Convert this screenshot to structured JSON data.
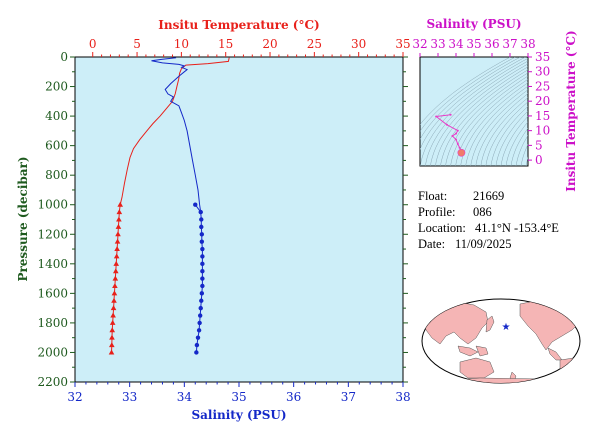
{
  "chart_data": [
    {
      "type": "line",
      "title": "",
      "y_axis": {
        "label": "Pressure (decibar)",
        "range": [
          0,
          2200
        ],
        "inverted": true,
        "ticks": [
          0,
          200,
          400,
          600,
          800,
          1000,
          1200,
          1400,
          1600,
          1800,
          2000,
          2200
        ]
      },
      "temperature_axis": {
        "label": "Insitu Temperature (°C)",
        "position": "top",
        "range": [
          -2,
          35
        ],
        "ticks": [
          0,
          5,
          10,
          15,
          20,
          25,
          30,
          35
        ]
      },
      "salinity_axis": {
        "label": "Salinity (PSU)",
        "position": "bottom",
        "range": [
          32,
          38
        ],
        "ticks": [
          32,
          33,
          34,
          35,
          36,
          37,
          38
        ]
      },
      "series": [
        {
          "name": "Temperature",
          "color": "#e8201a",
          "profile": [
            [
              15.4,
              5
            ],
            [
              15.3,
              30
            ],
            [
              13.0,
              45
            ],
            [
              10.5,
              55
            ],
            [
              10.0,
              80
            ],
            [
              9.8,
              110
            ],
            [
              9.7,
              150
            ],
            [
              9.5,
              200
            ],
            [
              9.3,
              250
            ],
            [
              9.0,
              300
            ],
            [
              8.3,
              350
            ],
            [
              7.6,
              400
            ],
            [
              6.8,
              450
            ],
            [
              6.1,
              500
            ],
            [
              5.3,
              560
            ],
            [
              4.6,
              620
            ],
            [
              4.2,
              680
            ],
            [
              3.9,
              760
            ],
            [
              3.6,
              850
            ],
            [
              3.3,
              950
            ],
            [
              3.1,
              1000
            ]
          ],
          "markers": [
            [
              3.1,
              1000
            ],
            [
              3.0,
              1050
            ],
            [
              2.95,
              1100
            ],
            [
              2.9,
              1150
            ],
            [
              2.85,
              1200
            ],
            [
              2.8,
              1250
            ],
            [
              2.75,
              1300
            ],
            [
              2.7,
              1350
            ],
            [
              2.65,
              1400
            ],
            [
              2.6,
              1450
            ],
            [
              2.55,
              1500
            ],
            [
              2.5,
              1550
            ],
            [
              2.45,
              1600
            ],
            [
              2.4,
              1650
            ],
            [
              2.35,
              1700
            ],
            [
              2.3,
              1750
            ],
            [
              2.25,
              1800
            ],
            [
              2.2,
              1850
            ],
            [
              2.17,
              1900
            ],
            [
              2.15,
              1950
            ],
            [
              2.12,
              2000
            ]
          ],
          "marker": "triangle"
        },
        {
          "name": "Salinity",
          "color": "#1428c8",
          "profile": [
            [
              33.85,
              5
            ],
            [
              33.6,
              15
            ],
            [
              33.4,
              25
            ],
            [
              33.6,
              40
            ],
            [
              33.9,
              50
            ],
            [
              34.0,
              60
            ],
            [
              33.95,
              70
            ],
            [
              34.05,
              85
            ],
            [
              34.0,
              100
            ],
            [
              33.9,
              130
            ],
            [
              33.75,
              180
            ],
            [
              33.65,
              220
            ],
            [
              33.7,
              250
            ],
            [
              33.8,
              270
            ],
            [
              33.75,
              300
            ],
            [
              33.9,
              330
            ],
            [
              33.95,
              380
            ],
            [
              34.0,
              430
            ],
            [
              34.05,
              500
            ],
            [
              34.1,
              600
            ],
            [
              34.15,
              700
            ],
            [
              34.2,
              800
            ],
            [
              34.25,
              900
            ],
            [
              34.28,
              1000
            ],
            [
              34.3,
              1050
            ]
          ],
          "markers": [
            [
              34.2,
              1000
            ],
            [
              34.3,
              1050
            ],
            [
              34.31,
              1100
            ],
            [
              34.31,
              1150
            ],
            [
              34.32,
              1200
            ],
            [
              34.32,
              1250
            ],
            [
              34.33,
              1300
            ],
            [
              34.33,
              1350
            ],
            [
              34.33,
              1400
            ],
            [
              34.33,
              1450
            ],
            [
              34.33,
              1500
            ],
            [
              34.33,
              1550
            ],
            [
              34.32,
              1600
            ],
            [
              34.31,
              1650
            ],
            [
              34.3,
              1700
            ],
            [
              34.29,
              1750
            ],
            [
              34.28,
              1800
            ],
            [
              34.27,
              1850
            ],
            [
              34.25,
              1900
            ],
            [
              34.23,
              1950
            ],
            [
              34.22,
              2000
            ]
          ],
          "marker": "circle"
        }
      ]
    },
    {
      "type": "scatter",
      "title": "",
      "xlabel": "Salinity (PSU)",
      "ylabel": "Insitu Temperature (°C)",
      "xlim": [
        32,
        38
      ],
      "ylim": [
        -2,
        35
      ],
      "xticks": [
        32,
        33,
        34,
        35,
        36,
        37,
        38
      ],
      "yticks": [
        0,
        5,
        10,
        15,
        20,
        25,
        30,
        35
      ],
      "series": [
        {
          "name": "",
          "color": "#e83ec8",
          "points": [
            [
              33.7,
              15.4
            ],
            [
              32.9,
              14.8
            ],
            [
              33.5,
              12.0
            ],
            [
              34.1,
              10.0
            ],
            [
              34.0,
              9.0
            ],
            [
              33.8,
              8.2
            ],
            [
              34.0,
              7.0
            ],
            [
              34.1,
              5.5
            ],
            [
              34.2,
              4.2
            ],
            [
              34.3,
              3.0
            ],
            [
              34.3,
              2.5
            ],
            [
              34.3,
              2.1
            ]
          ],
          "cluster": [
            34.3,
            2.5
          ]
        }
      ]
    }
  ],
  "info": {
    "float_label": "Float:",
    "float_value": "21669",
    "profile_label": "Profile:",
    "profile_value": "086",
    "location_label": "Location:",
    "location_value": "41.1°N  -153.4°E",
    "date_label": "Date:",
    "date_value": "11/09/2025"
  },
  "map": {
    "marker_icon": "star-icon",
    "marker_color": "#1428c8",
    "land_color": "#f5b5b5",
    "ocean_color": "#ffffff"
  }
}
